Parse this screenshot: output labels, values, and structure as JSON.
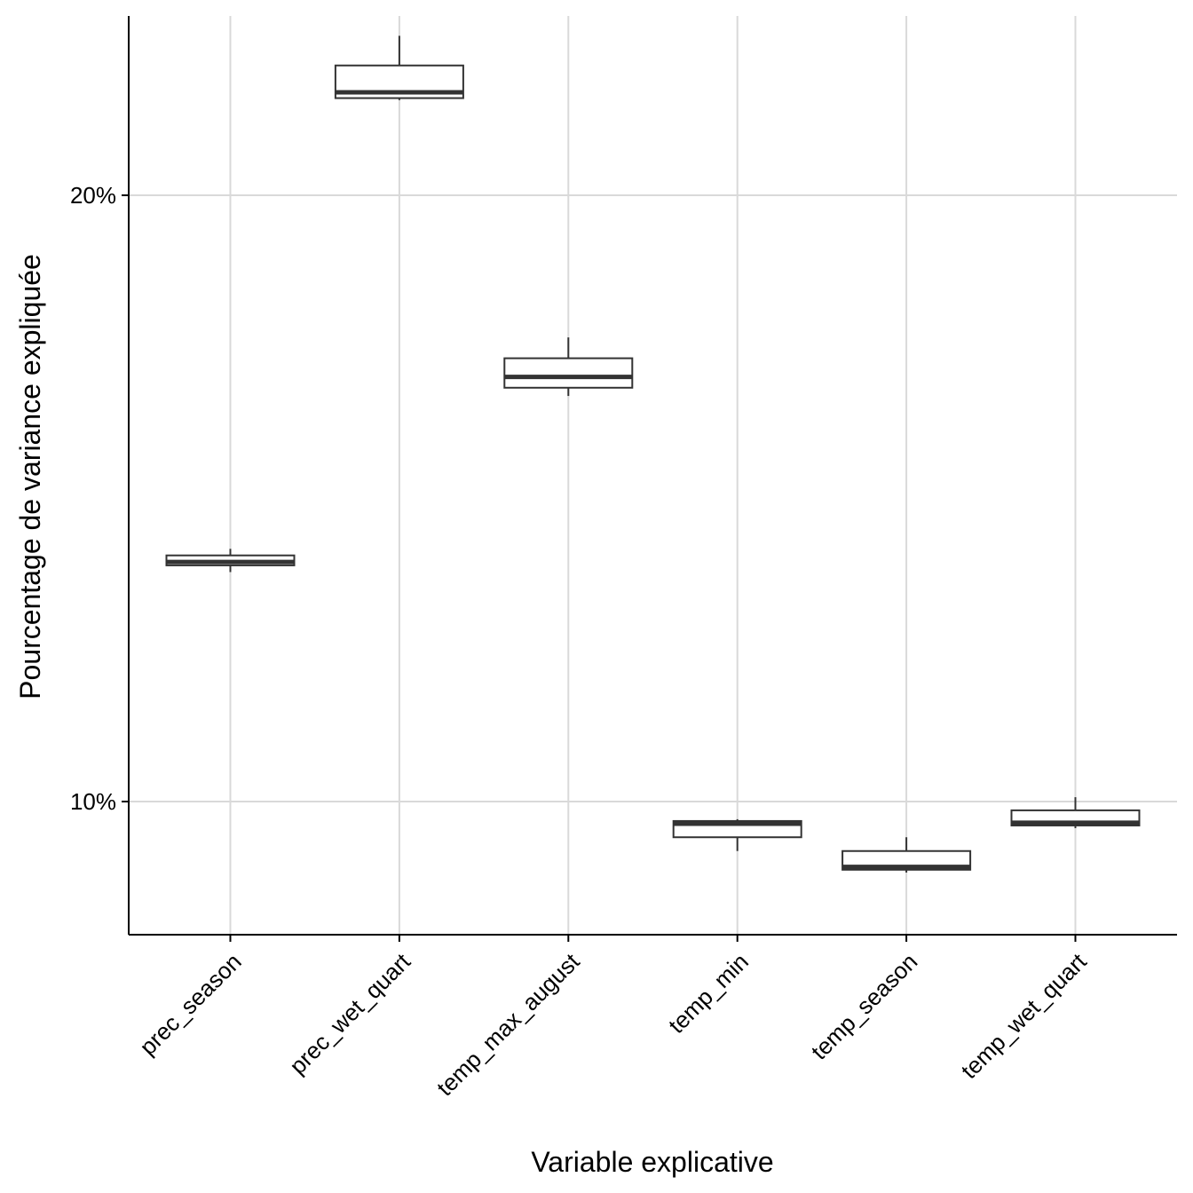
{
  "chart_data": {
    "type": "boxplot",
    "xlabel": "Variable explicative",
    "ylabel": "Pourcentage de variance expliquée",
    "y_scale": "log",
    "y_ticks": [
      {
        "value": 10,
        "label": "10%"
      },
      {
        "value": 20,
        "label": "20%"
      }
    ],
    "ylim": [
      8.5,
      27.0
    ],
    "grid": true,
    "categories": [
      "prec_season",
      "prec_wet_quart",
      "temp_max_august",
      "temp_min",
      "temp_season",
      "temp_wet_quart"
    ],
    "boxes": [
      {
        "category": "prec_season",
        "whisker_low": 13.0,
        "q1": 13.1,
        "median": 13.15,
        "q3": 13.25,
        "whisker_high": 13.35
      },
      {
        "category": "prec_wet_quart",
        "whisker_low": 22.3,
        "q1": 22.35,
        "median": 22.5,
        "q3": 23.2,
        "whisker_high": 24.0
      },
      {
        "category": "temp_max_august",
        "whisker_low": 15.9,
        "q1": 16.05,
        "median": 16.25,
        "q3": 16.6,
        "whisker_high": 17.0
      },
      {
        "category": "temp_min",
        "whisker_low": 9.45,
        "q1": 9.6,
        "median": 9.75,
        "q3": 9.78,
        "whisker_high": 9.8
      },
      {
        "category": "temp_season",
        "whisker_low": 9.22,
        "q1": 9.25,
        "median": 9.28,
        "q3": 9.45,
        "whisker_high": 9.6
      },
      {
        "category": "temp_wet_quart",
        "whisker_low": 9.7,
        "q1": 9.73,
        "median": 9.76,
        "q3": 9.9,
        "whisker_high": 10.05
      }
    ]
  }
}
